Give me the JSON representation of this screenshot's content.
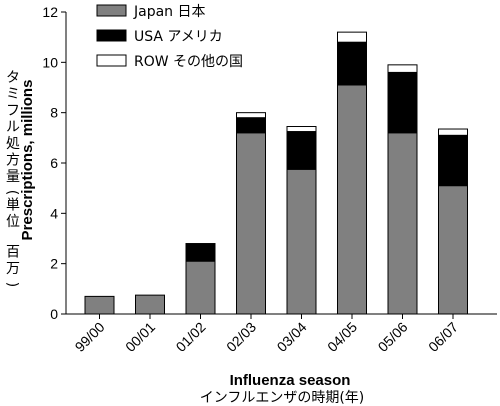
{
  "chart_data": {
    "type": "bar",
    "stacked": true,
    "categories": [
      "99/00",
      "00/01",
      "01/02",
      "02/03",
      "03/04",
      "04/05",
      "05/06",
      "06/07"
    ],
    "series": [
      {
        "name": "Japan 日本",
        "color": "#808080",
        "values": [
          0.7,
          0.75,
          2.1,
          7.2,
          5.75,
          9.1,
          7.2,
          5.1
        ]
      },
      {
        "name": "USA アメリカ",
        "color": "#000000",
        "values": [
          0.0,
          0.0,
          0.7,
          0.6,
          1.5,
          1.7,
          2.4,
          2.0
        ]
      },
      {
        "name": "ROW その他の国",
        "color": "#ffffff",
        "values": [
          0.0,
          0.0,
          0.0,
          0.2,
          0.2,
          0.4,
          0.3,
          0.25
        ]
      }
    ],
    "ylim": [
      0,
      12
    ],
    "yticks": [
      0,
      2,
      4,
      6,
      8,
      10,
      12
    ],
    "ylabel": "Prescriptions, millions",
    "ylabel_jp": "タミフル処方量(単位　百万)",
    "xlabel": "Influenza season",
    "xlabel_jp": "インフルエンザの時期(年)",
    "legend_position": "top-left",
    "grid": false
  }
}
